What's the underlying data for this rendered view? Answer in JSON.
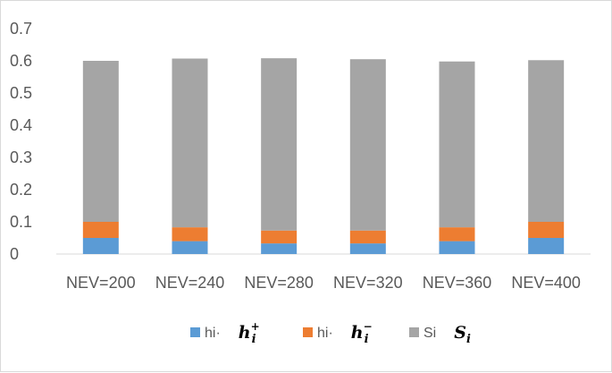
{
  "chart_data": {
    "type": "bar",
    "stacked": true,
    "categories": [
      "NEV=200",
      "NEV=240",
      "NEV=280",
      "NEV=320",
      "NEV=360",
      "NEV=400"
    ],
    "series": [
      {
        "name": "hi·",
        "math_label": {
          "base": "h",
          "sub": "i",
          "sup": "+"
        },
        "color": "#5b9bd5",
        "values": [
          0.05,
          0.04,
          0.033,
          0.033,
          0.04,
          0.05
        ]
      },
      {
        "name": "hi·",
        "math_label": {
          "base": "h",
          "sub": "i",
          "sup": "−"
        },
        "color": "#ed7d31",
        "values": [
          0.05,
          0.043,
          0.04,
          0.04,
          0.043,
          0.05
        ]
      },
      {
        "name": "Si",
        "math_label": {
          "base": "S",
          "sub": "i",
          "sup": ""
        },
        "color": "#a5a5a5",
        "values": [
          0.5,
          0.524,
          0.535,
          0.532,
          0.515,
          0.502
        ]
      }
    ],
    "ylim": [
      0,
      0.7
    ],
    "yticks": [
      "0",
      "0.1",
      "0.2",
      "0.3",
      "0.4",
      "0.5",
      "0.6",
      "0.7"
    ],
    "grid": false,
    "legend": "bottom"
  }
}
